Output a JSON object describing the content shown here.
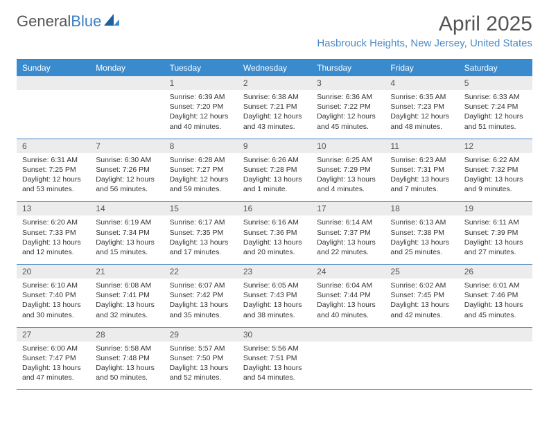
{
  "logo": {
    "part1": "General",
    "part2": "Blue"
  },
  "title": "April 2025",
  "location": "Hasbrouck Heights, New Jersey, United States",
  "colors": {
    "header_bg": "#3a8bce",
    "header_text": "#ffffff",
    "accent": "#3a7fc4",
    "daynum_bg": "#ececec",
    "text": "#333333"
  },
  "day_names": [
    "Sunday",
    "Monday",
    "Tuesday",
    "Wednesday",
    "Thursday",
    "Friday",
    "Saturday"
  ],
  "weeks": [
    [
      {
        "num": "",
        "lines": []
      },
      {
        "num": "",
        "lines": []
      },
      {
        "num": "1",
        "lines": [
          "Sunrise: 6:39 AM",
          "Sunset: 7:20 PM",
          "Daylight: 12 hours",
          "and 40 minutes."
        ]
      },
      {
        "num": "2",
        "lines": [
          "Sunrise: 6:38 AM",
          "Sunset: 7:21 PM",
          "Daylight: 12 hours",
          "and 43 minutes."
        ]
      },
      {
        "num": "3",
        "lines": [
          "Sunrise: 6:36 AM",
          "Sunset: 7:22 PM",
          "Daylight: 12 hours",
          "and 45 minutes."
        ]
      },
      {
        "num": "4",
        "lines": [
          "Sunrise: 6:35 AM",
          "Sunset: 7:23 PM",
          "Daylight: 12 hours",
          "and 48 minutes."
        ]
      },
      {
        "num": "5",
        "lines": [
          "Sunrise: 6:33 AM",
          "Sunset: 7:24 PM",
          "Daylight: 12 hours",
          "and 51 minutes."
        ]
      }
    ],
    [
      {
        "num": "6",
        "lines": [
          "Sunrise: 6:31 AM",
          "Sunset: 7:25 PM",
          "Daylight: 12 hours",
          "and 53 minutes."
        ]
      },
      {
        "num": "7",
        "lines": [
          "Sunrise: 6:30 AM",
          "Sunset: 7:26 PM",
          "Daylight: 12 hours",
          "and 56 minutes."
        ]
      },
      {
        "num": "8",
        "lines": [
          "Sunrise: 6:28 AM",
          "Sunset: 7:27 PM",
          "Daylight: 12 hours",
          "and 59 minutes."
        ]
      },
      {
        "num": "9",
        "lines": [
          "Sunrise: 6:26 AM",
          "Sunset: 7:28 PM",
          "Daylight: 13 hours",
          "and 1 minute."
        ]
      },
      {
        "num": "10",
        "lines": [
          "Sunrise: 6:25 AM",
          "Sunset: 7:29 PM",
          "Daylight: 13 hours",
          "and 4 minutes."
        ]
      },
      {
        "num": "11",
        "lines": [
          "Sunrise: 6:23 AM",
          "Sunset: 7:31 PM",
          "Daylight: 13 hours",
          "and 7 minutes."
        ]
      },
      {
        "num": "12",
        "lines": [
          "Sunrise: 6:22 AM",
          "Sunset: 7:32 PM",
          "Daylight: 13 hours",
          "and 9 minutes."
        ]
      }
    ],
    [
      {
        "num": "13",
        "lines": [
          "Sunrise: 6:20 AM",
          "Sunset: 7:33 PM",
          "Daylight: 13 hours",
          "and 12 minutes."
        ]
      },
      {
        "num": "14",
        "lines": [
          "Sunrise: 6:19 AM",
          "Sunset: 7:34 PM",
          "Daylight: 13 hours",
          "and 15 minutes."
        ]
      },
      {
        "num": "15",
        "lines": [
          "Sunrise: 6:17 AM",
          "Sunset: 7:35 PM",
          "Daylight: 13 hours",
          "and 17 minutes."
        ]
      },
      {
        "num": "16",
        "lines": [
          "Sunrise: 6:16 AM",
          "Sunset: 7:36 PM",
          "Daylight: 13 hours",
          "and 20 minutes."
        ]
      },
      {
        "num": "17",
        "lines": [
          "Sunrise: 6:14 AM",
          "Sunset: 7:37 PM",
          "Daylight: 13 hours",
          "and 22 minutes."
        ]
      },
      {
        "num": "18",
        "lines": [
          "Sunrise: 6:13 AM",
          "Sunset: 7:38 PM",
          "Daylight: 13 hours",
          "and 25 minutes."
        ]
      },
      {
        "num": "19",
        "lines": [
          "Sunrise: 6:11 AM",
          "Sunset: 7:39 PM",
          "Daylight: 13 hours",
          "and 27 minutes."
        ]
      }
    ],
    [
      {
        "num": "20",
        "lines": [
          "Sunrise: 6:10 AM",
          "Sunset: 7:40 PM",
          "Daylight: 13 hours",
          "and 30 minutes."
        ]
      },
      {
        "num": "21",
        "lines": [
          "Sunrise: 6:08 AM",
          "Sunset: 7:41 PM",
          "Daylight: 13 hours",
          "and 32 minutes."
        ]
      },
      {
        "num": "22",
        "lines": [
          "Sunrise: 6:07 AM",
          "Sunset: 7:42 PM",
          "Daylight: 13 hours",
          "and 35 minutes."
        ]
      },
      {
        "num": "23",
        "lines": [
          "Sunrise: 6:05 AM",
          "Sunset: 7:43 PM",
          "Daylight: 13 hours",
          "and 38 minutes."
        ]
      },
      {
        "num": "24",
        "lines": [
          "Sunrise: 6:04 AM",
          "Sunset: 7:44 PM",
          "Daylight: 13 hours",
          "and 40 minutes."
        ]
      },
      {
        "num": "25",
        "lines": [
          "Sunrise: 6:02 AM",
          "Sunset: 7:45 PM",
          "Daylight: 13 hours",
          "and 42 minutes."
        ]
      },
      {
        "num": "26",
        "lines": [
          "Sunrise: 6:01 AM",
          "Sunset: 7:46 PM",
          "Daylight: 13 hours",
          "and 45 minutes."
        ]
      }
    ],
    [
      {
        "num": "27",
        "lines": [
          "Sunrise: 6:00 AM",
          "Sunset: 7:47 PM",
          "Daylight: 13 hours",
          "and 47 minutes."
        ]
      },
      {
        "num": "28",
        "lines": [
          "Sunrise: 5:58 AM",
          "Sunset: 7:48 PM",
          "Daylight: 13 hours",
          "and 50 minutes."
        ]
      },
      {
        "num": "29",
        "lines": [
          "Sunrise: 5:57 AM",
          "Sunset: 7:50 PM",
          "Daylight: 13 hours",
          "and 52 minutes."
        ]
      },
      {
        "num": "30",
        "lines": [
          "Sunrise: 5:56 AM",
          "Sunset: 7:51 PM",
          "Daylight: 13 hours",
          "and 54 minutes."
        ]
      },
      {
        "num": "",
        "lines": []
      },
      {
        "num": "",
        "lines": []
      },
      {
        "num": "",
        "lines": []
      }
    ]
  ]
}
